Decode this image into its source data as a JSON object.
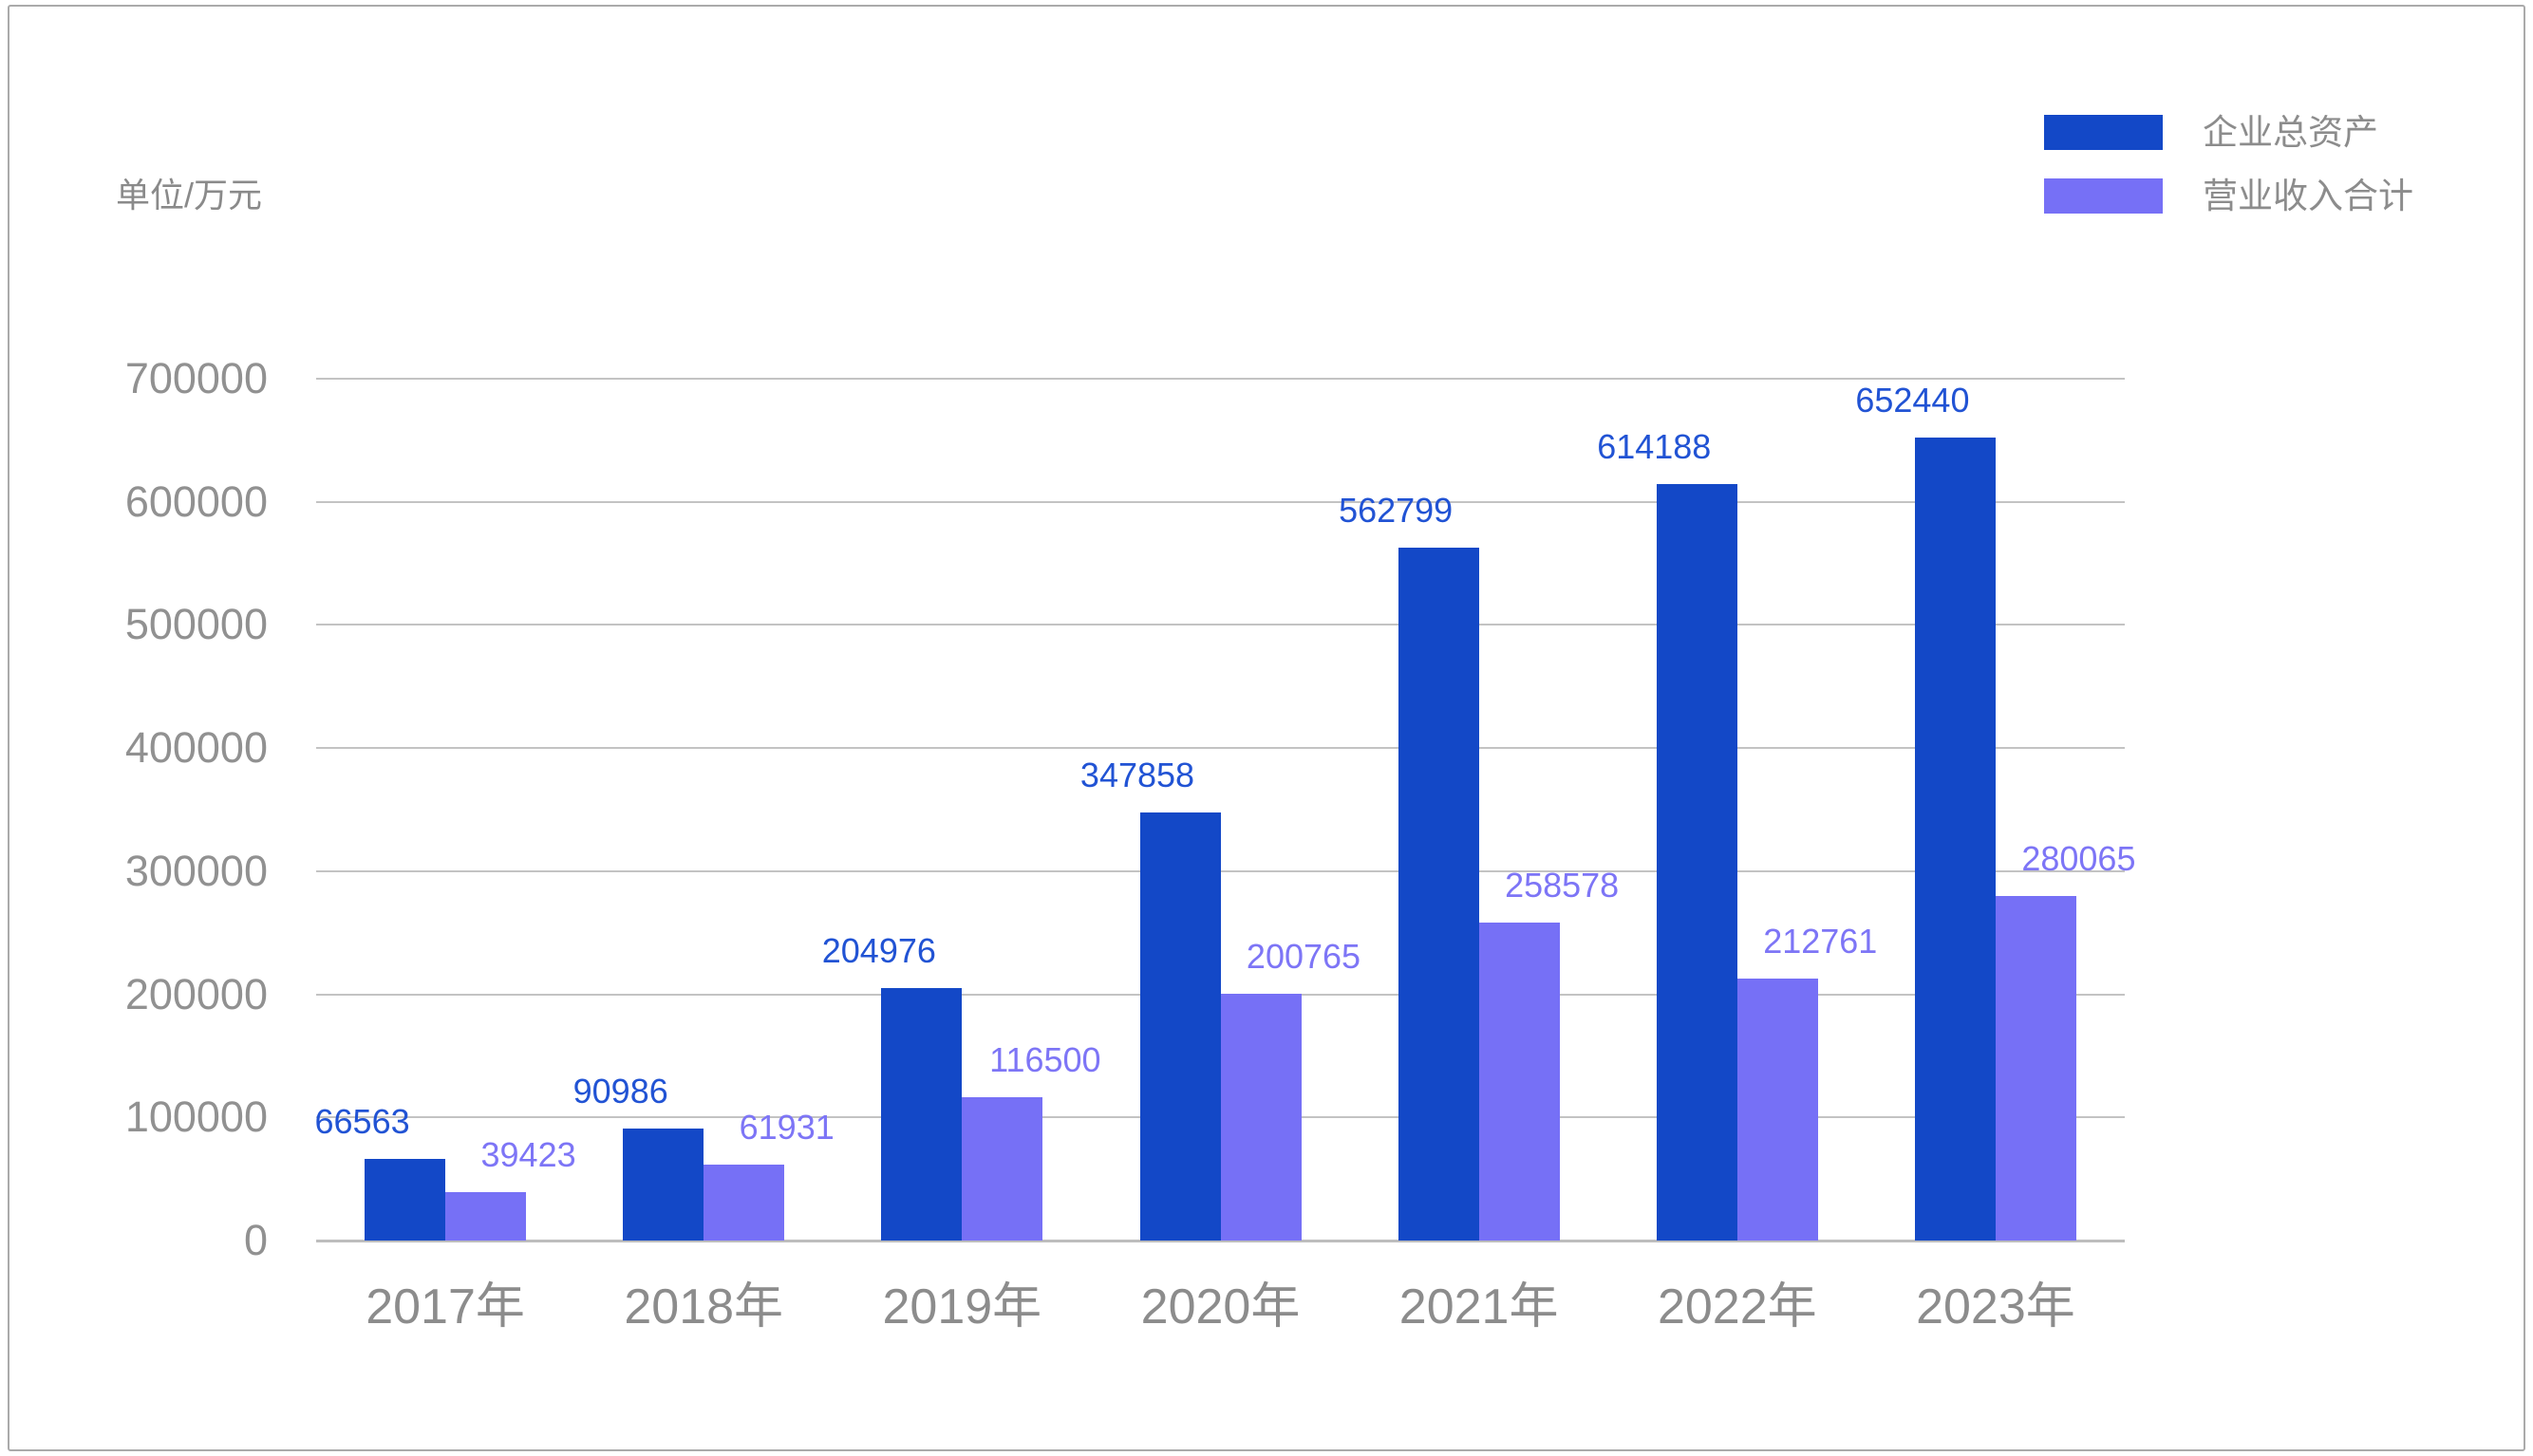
{
  "chart": {
    "unit_label": "单位/万元",
    "background": "#ffffff",
    "border_color": "#aaaaaa",
    "grid_color": "#c3c3c3",
    "axis_color": "#bdbdbd",
    "text_color": "#8c8c8c"
  },
  "chart_data": {
    "type": "bar",
    "unit": "单位/万元",
    "categories": [
      "2017年",
      "2018年",
      "2019年",
      "2020年",
      "2021年",
      "2022年",
      "2023年"
    ],
    "series": [
      {
        "key": "total-assets",
        "name": "企业总资产",
        "color": "#1348C7",
        "label_color": "#2153D4",
        "values": [
          66563,
          90986,
          204976,
          347858,
          562799,
          614188,
          652440
        ]
      },
      {
        "key": "revenue",
        "name": "营业收入合计",
        "color": "#7670F6",
        "label_color": "#7D75F6",
        "values": [
          39423,
          61931,
          116500,
          200765,
          258578,
          212761,
          280065
        ]
      }
    ],
    "ylim": [
      0,
      700000
    ],
    "yticks": [
      0,
      100000,
      200000,
      300000,
      400000,
      500000,
      600000,
      700000
    ],
    "grid": true,
    "legend_position": "top-right",
    "value_labels": true
  }
}
